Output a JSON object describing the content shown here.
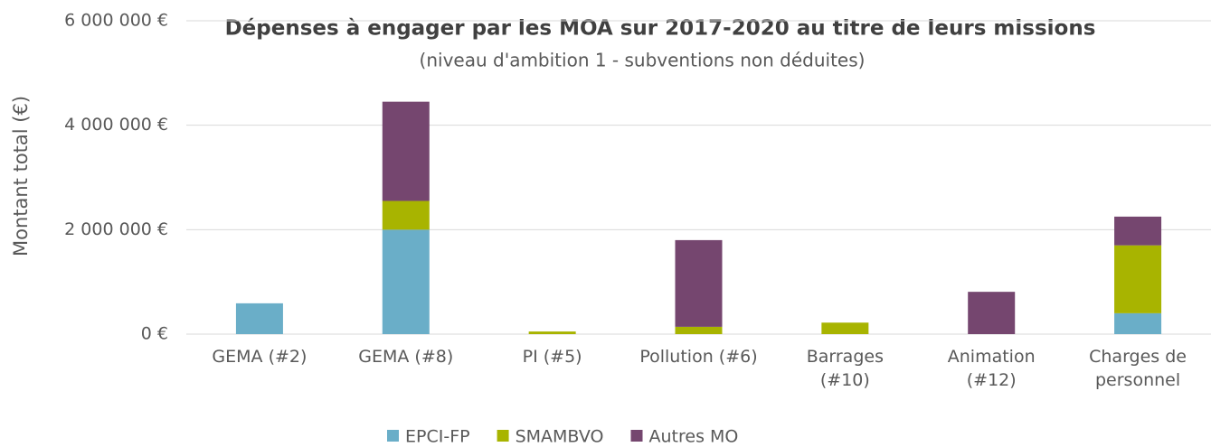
{
  "chart_data": {
    "type": "stacked_bar",
    "title": "Dépenses à engager par les MOA sur 2017-2020 au titre de leurs missions",
    "subtitle": "(niveau d'ambition 1 - subventions non déduites)",
    "y_label": "Montant total (€)",
    "categories": [
      "GEMA (#2)",
      "GEMA (#8)",
      "PI (#5)",
      "Pollution (#6)",
      "Barrages\n(#10)",
      "Animation\n(#12)",
      "Charges de\npersonnel"
    ],
    "series": [
      {
        "name": "EPCI-FP",
        "color": "#6aaec8",
        "values": [
          590000,
          2000000,
          0,
          0,
          0,
          0,
          400000
        ]
      },
      {
        "name": "SMAMBVO",
        "color": "#a8b400",
        "values": [
          0,
          550000,
          50000,
          140000,
          220000,
          0,
          1300000
        ]
      },
      {
        "name": "Autres MO",
        "color": "#75466f",
        "values": [
          0,
          1900000,
          0,
          1660000,
          0,
          810000,
          550000
        ]
      }
    ],
    "ylim": [
      0,
      6000000
    ],
    "yticks": [
      {
        "value": 0,
        "label": "0 €"
      },
      {
        "value": 2000000,
        "label": "2 000 000 €"
      },
      {
        "value": 4000000,
        "label": "4 000 000 €"
      },
      {
        "value": 6000000,
        "label": "6 000 000 €"
      }
    ],
    "grid": true,
    "legend": "bottom"
  }
}
